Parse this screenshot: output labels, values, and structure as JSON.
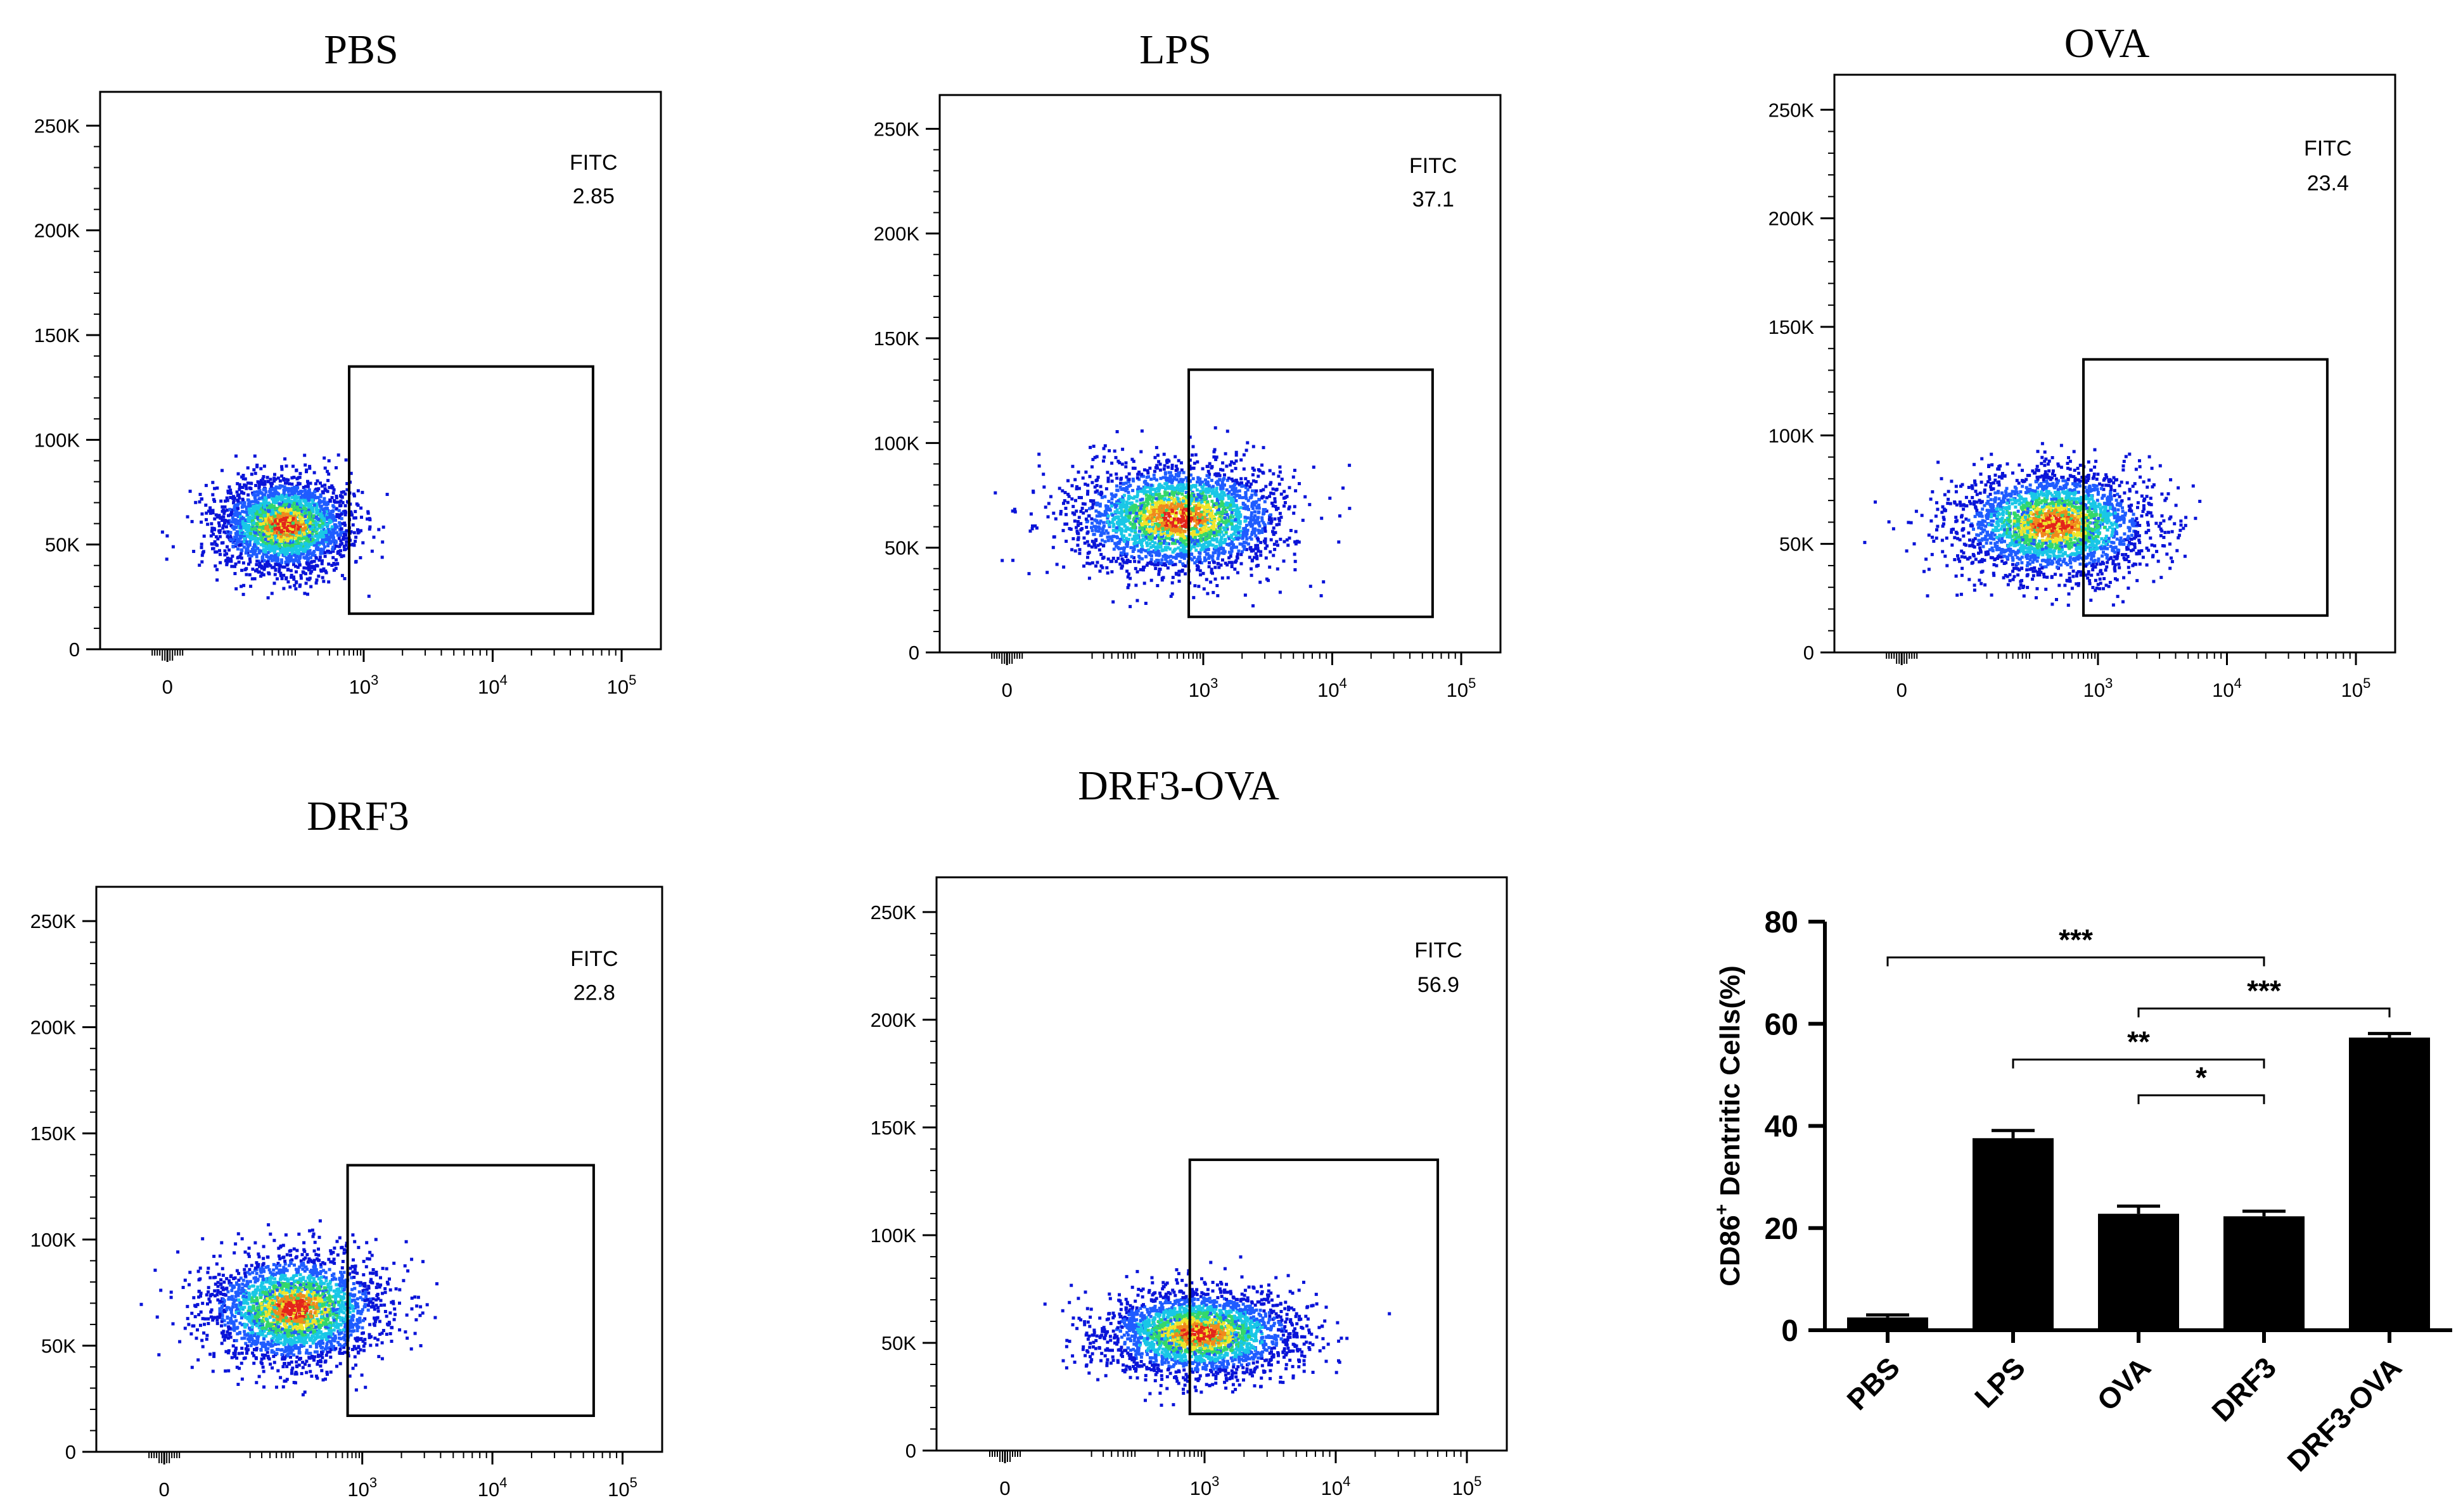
{
  "colors": {
    "axis": "#000000",
    "bar": "#000000",
    "density_scale": [
      "#0a14d8",
      "#1f5cff",
      "#19c7e6",
      "#34d86a",
      "#f0e52b",
      "#f08a1c",
      "#e3241c"
    ]
  },
  "chart_data": [
    {
      "type": "scatter",
      "panel": "PBS",
      "title": "PBS",
      "gate": {
        "label": "FITC",
        "value": "2.85"
      },
      "x_ticks": [
        {
          "main": "0",
          "exp": ""
        },
        {
          "main": "10",
          "exp": "3"
        },
        {
          "main": "10",
          "exp": "4"
        },
        {
          "main": "10",
          "exp": "5"
        }
      ],
      "y_ticks": [
        "0",
        "50K",
        "100K",
        "150K",
        "200K",
        "250K"
      ],
      "ylim": [
        0,
        262144
      ],
      "gate_x_range": [
        600,
        60000
      ],
      "gate_y_range": [
        17000,
        135000
      ],
      "cluster": {
        "center_x": 60,
        "center_y": 60000,
        "x_spread_decades": 0.7,
        "y_spread": 11000
      }
    },
    {
      "type": "scatter",
      "panel": "LPS",
      "title": "LPS",
      "gate": {
        "label": "FITC",
        "value": "37.1"
      },
      "x_ticks": [
        {
          "main": "0",
          "exp": ""
        },
        {
          "main": "10",
          "exp": "3"
        },
        {
          "main": "10",
          "exp": "4"
        },
        {
          "main": "10",
          "exp": "5"
        }
      ],
      "y_ticks": [
        "0",
        "50K",
        "100K",
        "150K",
        "200K",
        "250K"
      ],
      "ylim": [
        0,
        262144
      ],
      "gate_x_range": [
        600,
        60000
      ],
      "gate_y_range": [
        17000,
        135000
      ],
      "cluster": {
        "center_x": 400,
        "center_y": 65000,
        "x_spread_decades": 1.1,
        "y_spread": 13000
      }
    },
    {
      "type": "scatter",
      "panel": "OVA",
      "title": "OVA",
      "gate": {
        "label": "FITC",
        "value": "23.4"
      },
      "x_ticks": [
        {
          "main": "0",
          "exp": ""
        },
        {
          "main": "10",
          "exp": "3"
        },
        {
          "main": "10",
          "exp": "4"
        },
        {
          "main": "10",
          "exp": "5"
        }
      ],
      "y_ticks": [
        "0",
        "50K",
        "100K",
        "150K",
        "200K",
        "250K"
      ],
      "ylim": [
        0,
        262144
      ],
      "gate_x_range": [
        600,
        60000
      ],
      "gate_y_range": [
        17000,
        135000
      ],
      "cluster": {
        "center_x": 200,
        "center_y": 60000,
        "x_spread_decades": 1.0,
        "y_spread": 12000
      }
    },
    {
      "type": "scatter",
      "panel": "DRF3",
      "title": "DRF3",
      "gate": {
        "label": "FITC",
        "value": "22.8"
      },
      "x_ticks": [
        {
          "main": "0",
          "exp": ""
        },
        {
          "main": "10",
          "exp": "3"
        },
        {
          "main": "10",
          "exp": "4"
        },
        {
          "main": "10",
          "exp": "5"
        }
      ],
      "y_ticks": [
        "0",
        "50K",
        "100K",
        "150K",
        "200K",
        "250K"
      ],
      "ylim": [
        0,
        262144
      ],
      "gate_x_range": [
        600,
        60000
      ],
      "gate_y_range": [
        17000,
        135000
      ],
      "cluster": {
        "center_x": 90,
        "center_y": 68000,
        "x_spread_decades": 0.9,
        "y_spread": 13000
      }
    },
    {
      "type": "scatter",
      "panel": "DRF3-OVA",
      "title": "DRF3-OVA",
      "gate": {
        "label": "FITC",
        "value": "56.9"
      },
      "x_ticks": [
        {
          "main": "0",
          "exp": ""
        },
        {
          "main": "10",
          "exp": "3"
        },
        {
          "main": "10",
          "exp": "4"
        },
        {
          "main": "10",
          "exp": "5"
        }
      ],
      "y_ticks": [
        "0",
        "50K",
        "100K",
        "150K",
        "200K",
        "250K"
      ],
      "ylim": [
        0,
        262144
      ],
      "gate_x_range": [
        600,
        60000
      ],
      "gate_y_range": [
        17000,
        135000
      ],
      "cluster": {
        "center_x": 800,
        "center_y": 55000,
        "x_spread_decades": 1.0,
        "y_spread": 10000
      }
    },
    {
      "type": "bar",
      "panel": "summary",
      "title": "",
      "categories": [
        "PBS",
        "LPS",
        "OVA",
        "DRF3",
        "DRF3-OVA"
      ],
      "values": [
        2.5,
        37.6,
        22.8,
        22.3,
        57.3
      ],
      "errors": [
        0.5,
        1.5,
        1.5,
        1.0,
        0.8
      ],
      "ylabel_main": "CD86",
      "ylabel_sup": "+",
      "ylabel_rest": " Dentritic Cells(%)",
      "ylim": [
        0,
        80
      ],
      "y_ticks": [
        "0",
        "20",
        "40",
        "60",
        "80"
      ],
      "significance": [
        {
          "from": "PBS",
          "to": "DRF3",
          "label": "***",
          "y": 73
        },
        {
          "from": "OVA",
          "to": "DRF3-OVA",
          "label": "***",
          "y": 63
        },
        {
          "from": "LPS",
          "to": "DRF3",
          "label": "**",
          "y": 53
        },
        {
          "from": "OVA",
          "to": "DRF3",
          "label": "*",
          "y": 46
        }
      ]
    }
  ]
}
